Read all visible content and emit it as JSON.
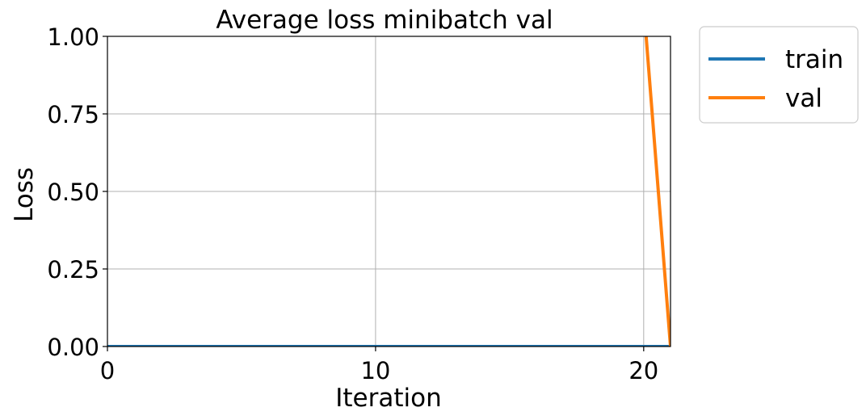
{
  "chart_data": {
    "type": "line",
    "title": "Average loss minibatch val",
    "xlabel": "Iteration",
    "ylabel": "Loss",
    "xlim": [
      0,
      21
    ],
    "ylim": [
      0,
      1
    ],
    "xticks": [
      0,
      10,
      20
    ],
    "xtick_labels": [
      "0",
      "10",
      "20"
    ],
    "yticks": [
      0,
      0.25,
      0.5,
      0.75,
      1.0
    ],
    "ytick_labels": [
      "0.00",
      "0.25",
      "0.50",
      "0.75",
      "1.00"
    ],
    "grid": true,
    "legend_position": "outside-top-right",
    "series": [
      {
        "name": "train",
        "color": "#1f77b4",
        "x": [
          0,
          21
        ],
        "y": [
          0,
          0
        ]
      },
      {
        "name": "val",
        "color": "#ff7f0e",
        "x": [
          20,
          21
        ],
        "y": [
          1.1,
          0
        ]
      }
    ]
  }
}
